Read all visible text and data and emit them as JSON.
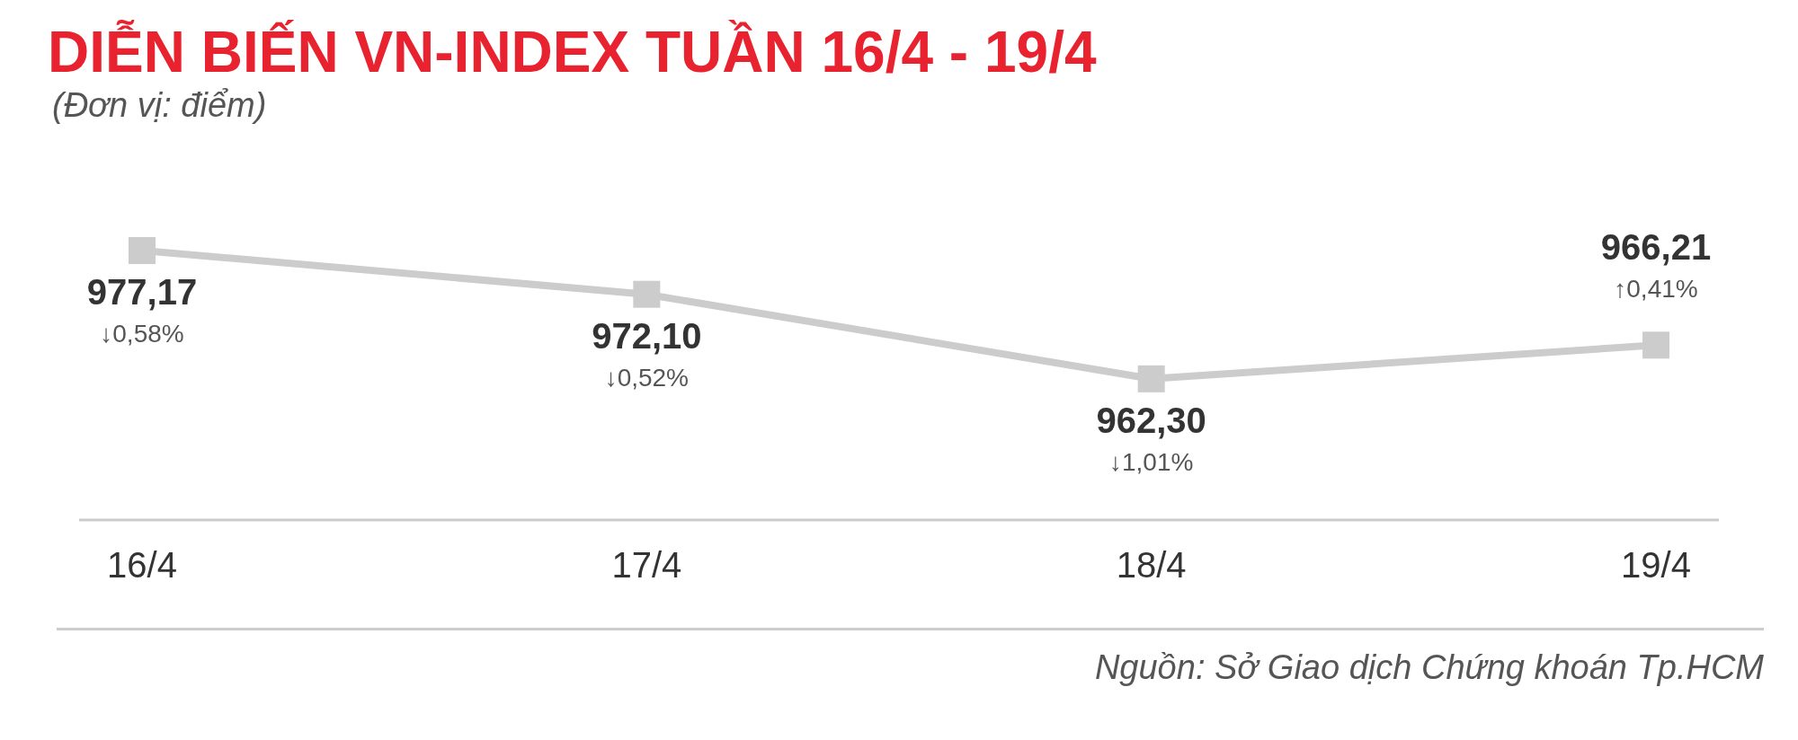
{
  "chart_data": {
    "type": "line",
    "title": "DIỄN BIẾN VN-INDEX TUẦN 16/4 - 19/4",
    "subtitle": "(Đơn vị: điểm)",
    "categories": [
      "16/4",
      "17/4",
      "18/4",
      "19/4"
    ],
    "series": [
      {
        "color": "#cccccc",
        "values": [
          977.17,
          972.1,
          962.3,
          966.21
        ],
        "value_labels": [
          "977,17",
          "972,10",
          "962,30",
          "966,21"
        ]
      }
    ],
    "marker": "square",
    "grid": false,
    "annotations": [
      {
        "text": "↓0,58%",
        "x": "16/4",
        "y": 977.17
      },
      {
        "text": "↓0,52%",
        "x": "17/4",
        "y": 972.1
      },
      {
        "text": "↓1,01%",
        "x": "18/4",
        "y": 962.3
      },
      {
        "text": "↑0,41%",
        "x": "19/4",
        "y": 966.21
      },
      "Nguồn: Sở Giao dịch Chứng khoán Tp.HCM"
    ]
  }
}
